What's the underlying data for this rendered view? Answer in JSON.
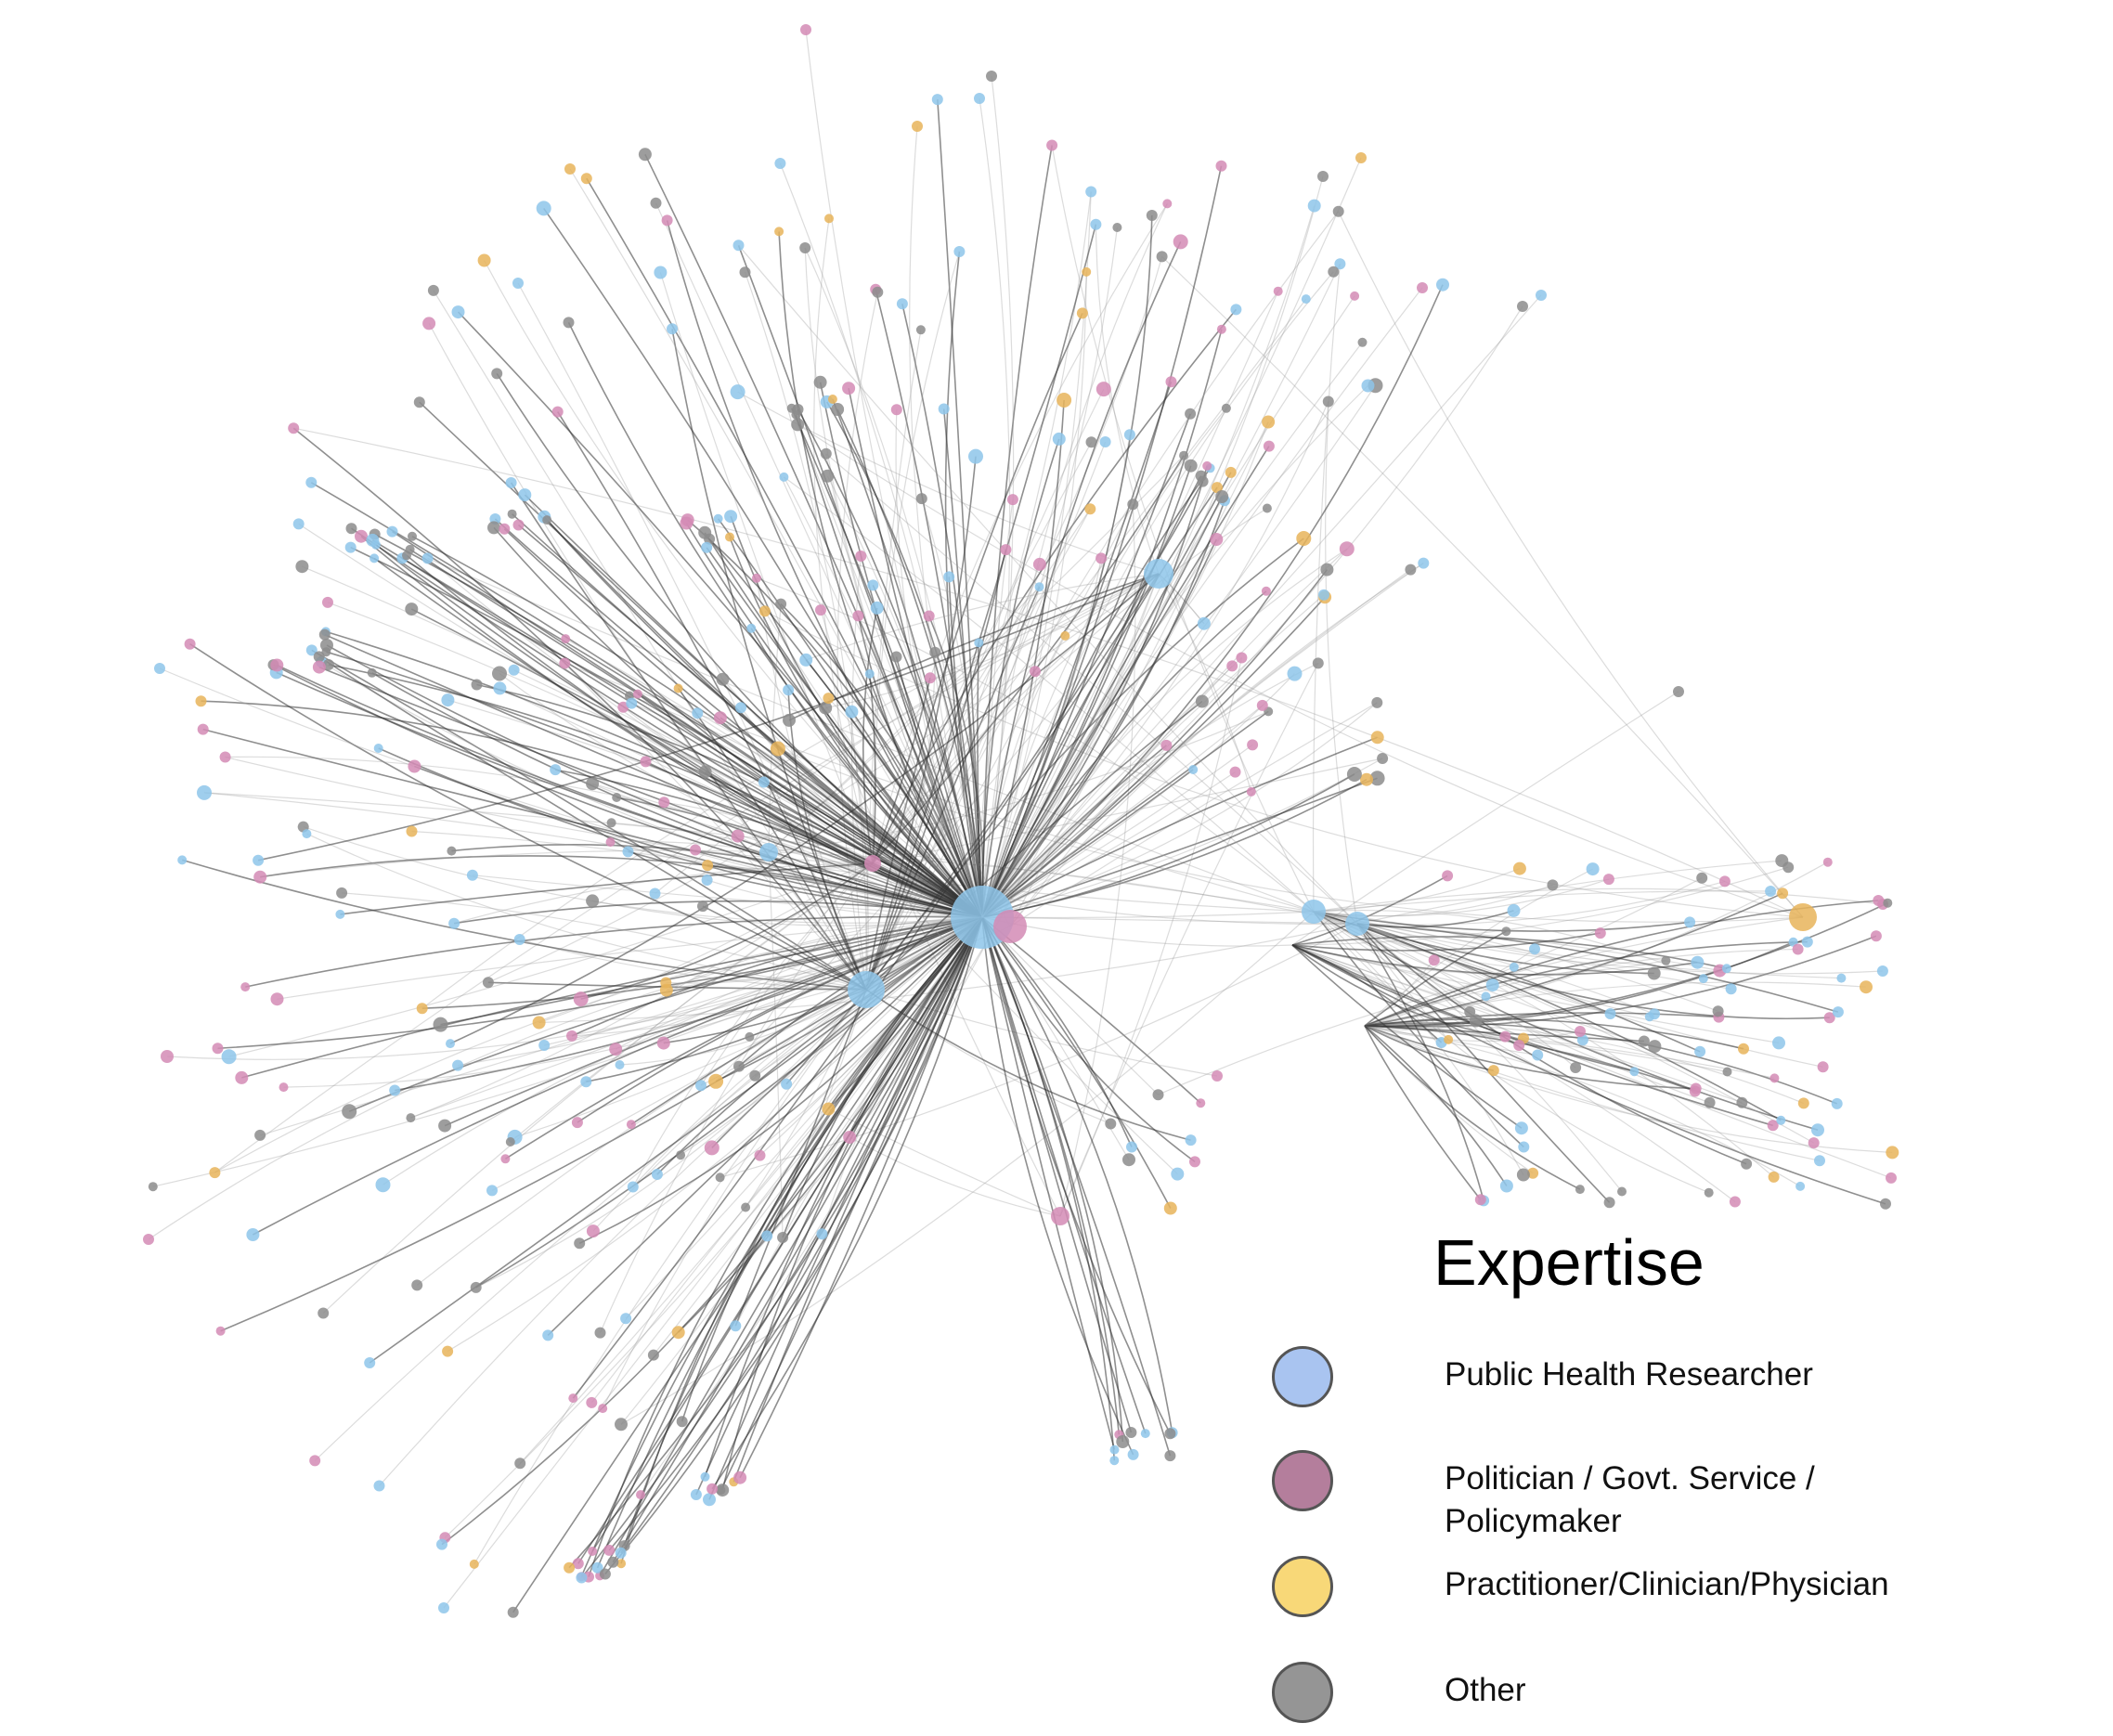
{
  "legend": {
    "title": "Expertise",
    "items": [
      {
        "label_lines": [
          "Public Health Researcher"
        ],
        "color": "#a9c4f0"
      },
      {
        "label_lines": [
          "Politician / Govt. Service /",
          "Policymaker"
        ],
        "color": "#b47e9c"
      },
      {
        "label_lines": [
          "Practitioner/Clinician/Physician"
        ],
        "color": "#f8d878"
      },
      {
        "label_lines": [
          "Other"
        ],
        "color": "#959595"
      }
    ]
  },
  "node_colors": {
    "researcher": "#8ec5ea",
    "policymaker": "#d38bb5",
    "practitioner": "#e8b45a",
    "other": "#8c8c8c"
  }
}
